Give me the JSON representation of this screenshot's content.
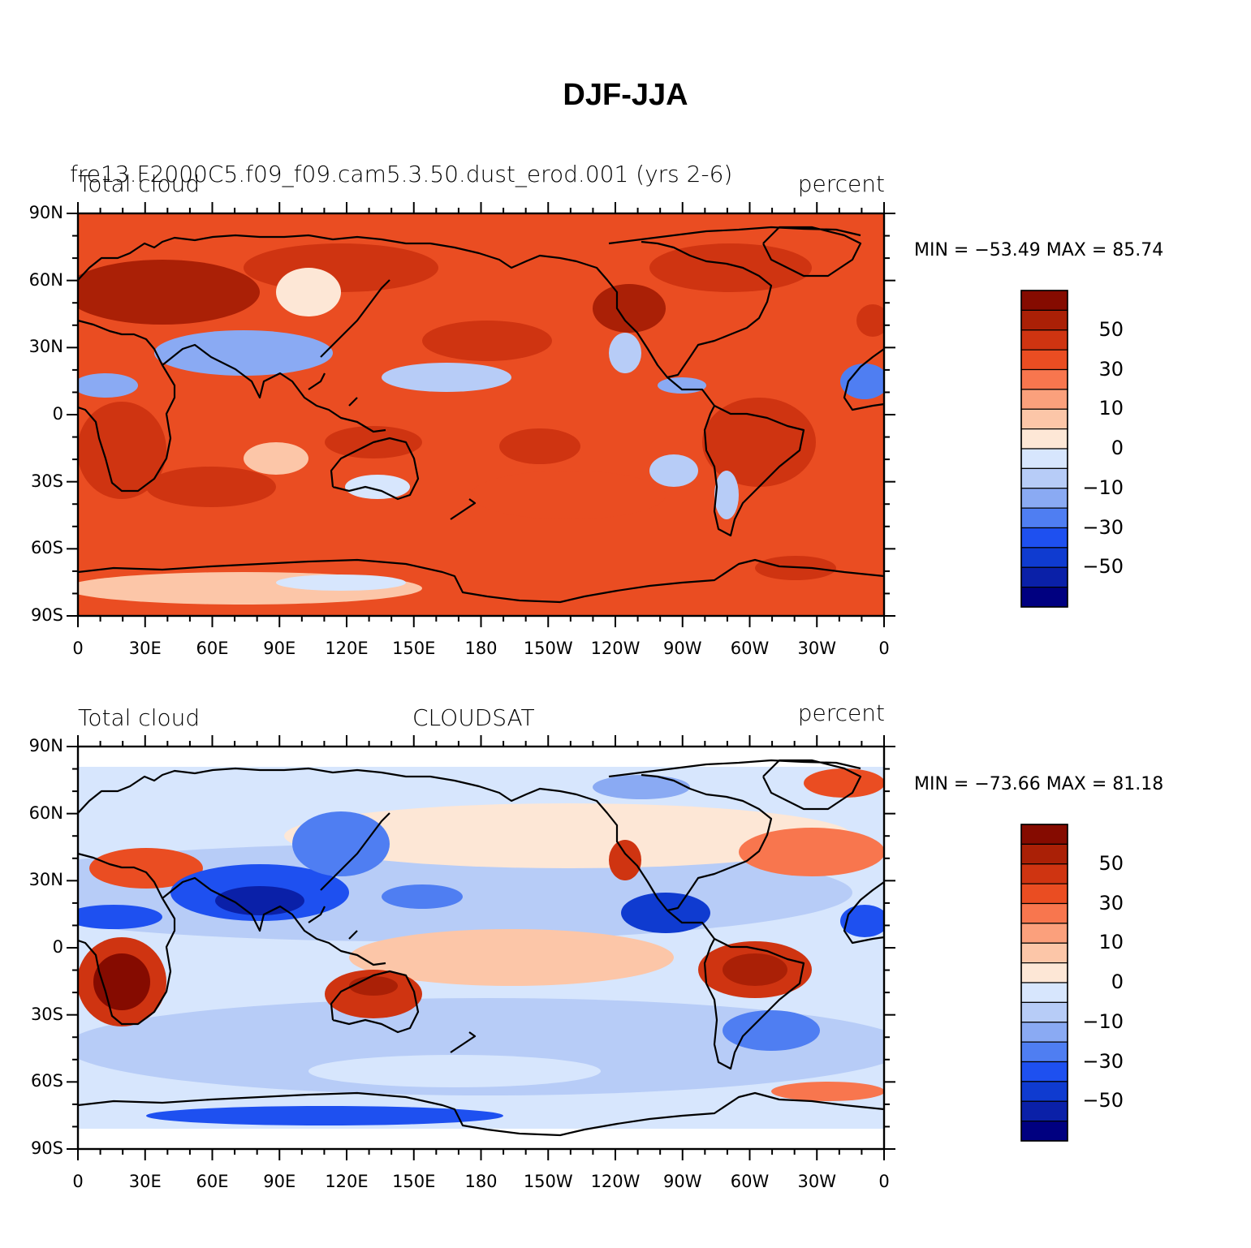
{
  "title": "DJF-JJA",
  "colors": {
    "levels": [
      "#000080",
      "#0a20a8",
      "#0f3bd0",
      "#1e50f0",
      "#4f7ef2",
      "#8aaaf3",
      "#b7ccf7",
      "#d7e6fd",
      "#fde7d6",
      "#fcc6a8",
      "#fba07c",
      "#f8764e",
      "#ea4d22",
      "#cf3411",
      "#aa2006",
      "#850b00"
    ]
  },
  "panels": [
    {
      "id": "model",
      "left_text": "Total cloud",
      "center_text": "fre13.F2000C5.f09_f09.cam5.3.50.dust_erod.001 (yrs 2-6)",
      "right_text": "percent",
      "min_max": "MIN = −53.49 MAX =  85.74",
      "lat_labels": [
        "90N",
        "60N",
        "30N",
        "0",
        "30S",
        "60S",
        "90S"
      ],
      "lon_labels": [
        "0",
        "30E",
        "60E",
        "90E",
        "120E",
        "150E",
        "180",
        "150W",
        "120W",
        "90W",
        "60W",
        "30W",
        "0"
      ],
      "colorbar_labels": [
        "50",
        "30",
        "10",
        "0",
        "−10",
        "−30",
        "−50"
      ]
    },
    {
      "id": "obs",
      "left_text": "Total cloud",
      "center_text": "CLOUDSAT",
      "right_text": "percent",
      "min_max": "MIN = −73.66 MAX =  81.18",
      "lat_labels": [
        "90N",
        "60N",
        "30N",
        "0",
        "30S",
        "60S",
        "90S"
      ],
      "lon_labels": [
        "0",
        "30E",
        "60E",
        "90E",
        "120E",
        "150E",
        "180",
        "150W",
        "120W",
        "90W",
        "60W",
        "30W",
        "0"
      ],
      "colorbar_labels": [
        "50",
        "30",
        "10",
        "0",
        "−10",
        "−30",
        "−50"
      ]
    }
  ],
  "map_data": {
    "projection": "cylindrical equidistant",
    "lon_range": [
      0,
      360
    ],
    "lat_range": [
      -90,
      90
    ],
    "field": "Total cloud DJF minus JJA",
    "units": "percent",
    "contour_levels": [
      -60,
      -50,
      -40,
      -30,
      -20,
      -10,
      -5,
      0,
      5,
      10,
      20,
      30,
      40,
      50,
      60
    ],
    "panels": [
      {
        "name": "model",
        "min": -53.49,
        "max": 85.74
      },
      {
        "name": "CLOUDSAT",
        "min": -73.66,
        "max": 81.18,
        "lat_coverage": [
          -82,
          82
        ]
      }
    ]
  }
}
